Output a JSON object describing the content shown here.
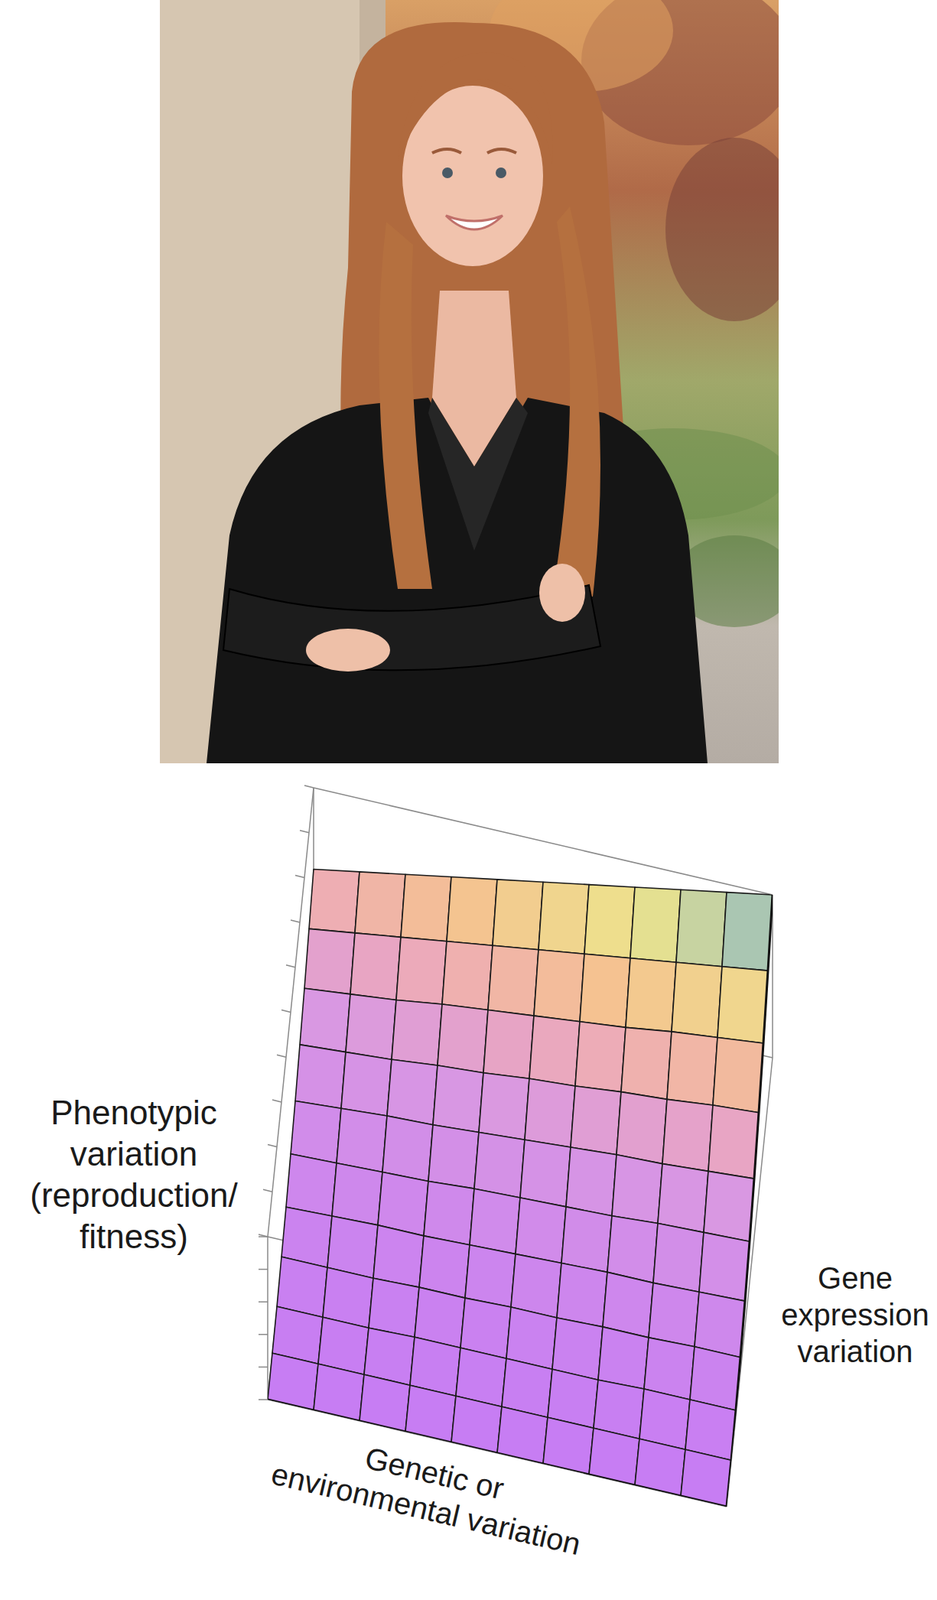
{
  "chart_data": {
    "type": "surface",
    "zlabel": [
      "Phenotypic",
      "variation",
      "(reproduction/",
      "fitness)"
    ],
    "xlabel": [
      "Genetic or",
      "environmental variation"
    ],
    "ylabel": [
      "Gene",
      "expression",
      "variation"
    ],
    "x": [
      0,
      1,
      2,
      3,
      4,
      5,
      6,
      7,
      8,
      9,
      10
    ],
    "y": [
      0,
      1,
      2,
      3,
      4,
      5,
      6,
      7,
      8,
      9,
      10
    ],
    "z": [
      [
        0,
        0,
        0,
        0,
        0,
        0,
        0,
        0,
        0,
        0,
        0
      ],
      [
        0.01,
        0.01,
        0.01,
        0.01,
        0.01,
        0.01,
        0.01,
        0.01,
        0.01,
        0.01,
        0.01
      ],
      [
        0.02,
        0.02,
        0.02,
        0.03,
        0.03,
        0.03,
        0.03,
        0.03,
        0.04,
        0.04,
        0.04
      ],
      [
        0.05,
        0.05,
        0.05,
        0.06,
        0.06,
        0.07,
        0.07,
        0.08,
        0.08,
        0.09,
        0.09
      ],
      [
        0.08,
        0.09,
        0.1,
        0.1,
        0.11,
        0.12,
        0.13,
        0.14,
        0.14,
        0.15,
        0.16
      ],
      [
        0.13,
        0.14,
        0.15,
        0.16,
        0.18,
        0.19,
        0.2,
        0.21,
        0.23,
        0.24,
        0.25
      ],
      [
        0.18,
        0.2,
        0.22,
        0.23,
        0.25,
        0.27,
        0.29,
        0.31,
        0.32,
        0.34,
        0.36
      ],
      [
        0.25,
        0.27,
        0.29,
        0.32,
        0.34,
        0.37,
        0.39,
        0.42,
        0.44,
        0.47,
        0.49
      ],
      [
        0.32,
        0.35,
        0.38,
        0.42,
        0.45,
        0.48,
        0.51,
        0.54,
        0.58,
        0.61,
        0.64
      ],
      [
        0.41,
        0.45,
        0.49,
        0.53,
        0.57,
        0.61,
        0.65,
        0.69,
        0.73,
        0.77,
        0.81
      ],
      [
        0.5,
        0.55,
        0.6,
        0.65,
        0.7,
        0.75,
        0.8,
        0.85,
        0.9,
        0.95,
        1
      ]
    ],
    "xlim": [
      0,
      10
    ],
    "ylim": [
      0,
      10
    ],
    "zlim": [
      0,
      1
    ],
    "yticks": [
      0,
      1,
      2,
      3,
      4,
      5,
      6,
      7,
      8,
      9,
      10
    ],
    "zticks": [
      0,
      0.2,
      0.4,
      0.6,
      0.8,
      1
    ],
    "tick_labels": false
  }
}
